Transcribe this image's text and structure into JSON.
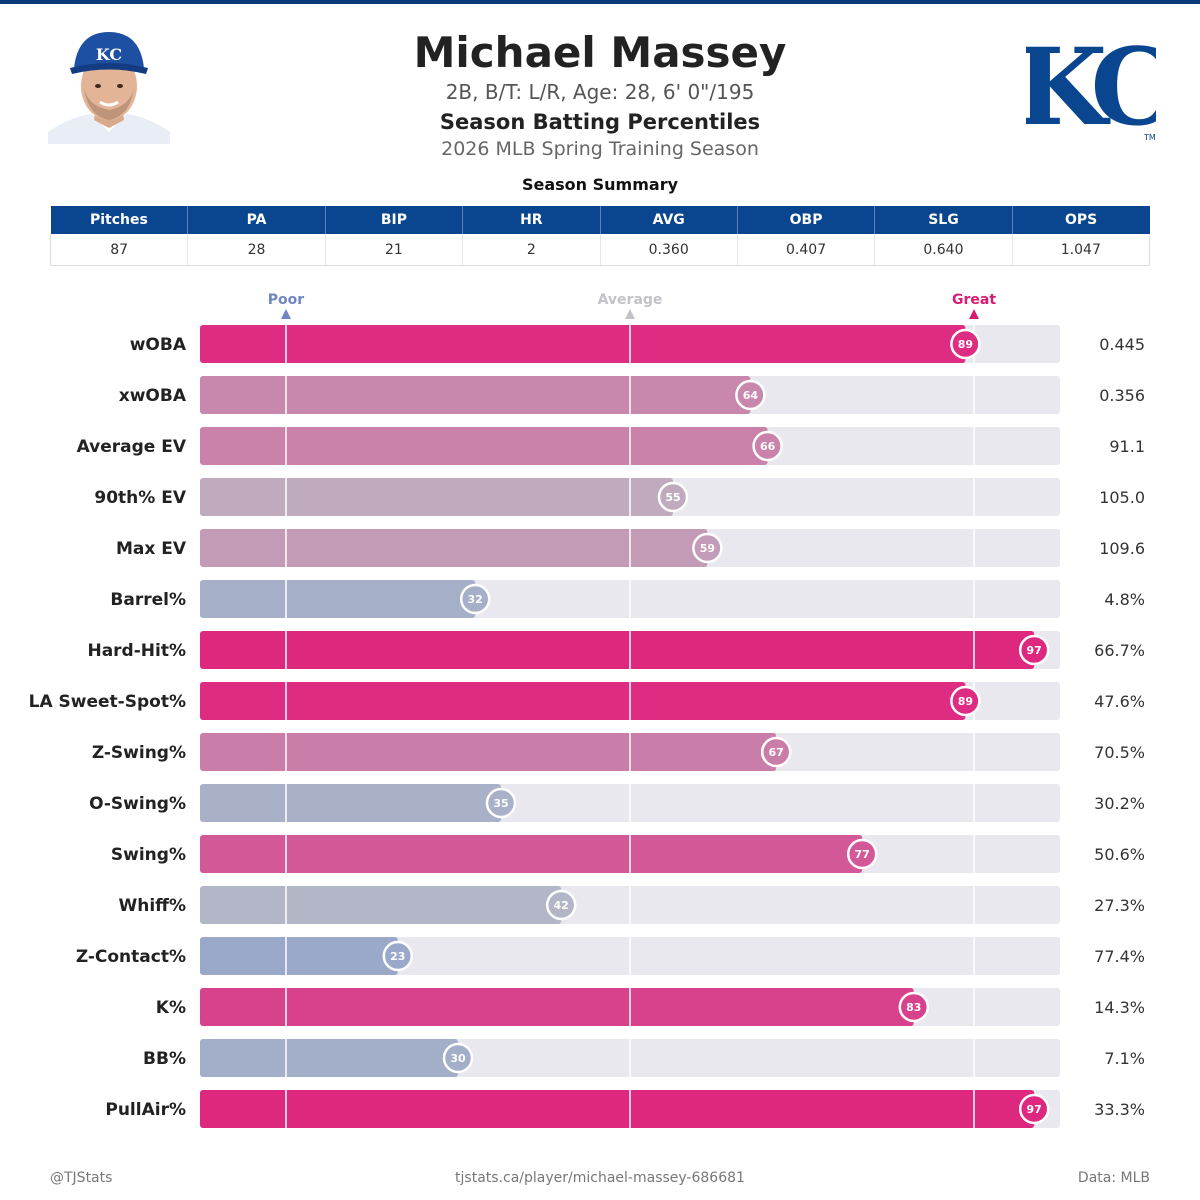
{
  "header": {
    "name": "Michael Massey",
    "bio": "2B, B/T: L/R, Age: 28, 6' 0\"/195",
    "chart_title": "Season Batting Percentiles",
    "chart_subtitle": "2026 MLB Spring Training Season",
    "logo_text": "KC",
    "logo_tm": "TM"
  },
  "summary": {
    "title": "Season Summary",
    "columns": [
      "Pitches",
      "PA",
      "BIP",
      "HR",
      "AVG",
      "OBP",
      "SLG",
      "OPS"
    ],
    "values": [
      "87",
      "28",
      "21",
      "2",
      "0.360",
      "0.407",
      "0.640",
      "1.047"
    ]
  },
  "chart_data": {
    "type": "bar",
    "orientation": "horizontal",
    "xlim": [
      0,
      100
    ],
    "reference_markers": [
      {
        "label": "Poor",
        "value": 10,
        "color": "#6f86c0"
      },
      {
        "label": "Average",
        "value": 50,
        "color": "#c2c2c8"
      },
      {
        "label": "Great",
        "value": 90,
        "color": "#d81b73"
      }
    ],
    "categories": [
      "wOBA",
      "xwOBA",
      "Average EV",
      "90th% EV",
      "Max EV",
      "Barrel%",
      "Hard-Hit%",
      "LA Sweet-Spot%",
      "Z-Swing%",
      "O-Swing%",
      "Swing%",
      "Whiff%",
      "Z-Contact%",
      "K%",
      "BB%",
      "PullAir%"
    ],
    "percentiles": [
      89,
      64,
      66,
      55,
      59,
      32,
      97,
      89,
      67,
      35,
      77,
      42,
      23,
      83,
      30,
      97
    ],
    "stat_values": [
      "0.445",
      "0.356",
      "91.1",
      "105.0",
      "109.6",
      "4.8%",
      "66.7%",
      "47.6%",
      "70.5%",
      "30.2%",
      "50.6%",
      "27.3%",
      "77.4%",
      "14.3%",
      "7.1%",
      "33.3%"
    ],
    "colors": {
      "poor": "#8a9fcb",
      "average": "#bcbcc6",
      "great": "#de2880",
      "track": "#e8e8ee",
      "line": "#ffffff"
    }
  },
  "footer": {
    "left": "@TJStats",
    "center": "tjstats.ca/player/michael-massey-686681",
    "right": "Data: MLB"
  }
}
